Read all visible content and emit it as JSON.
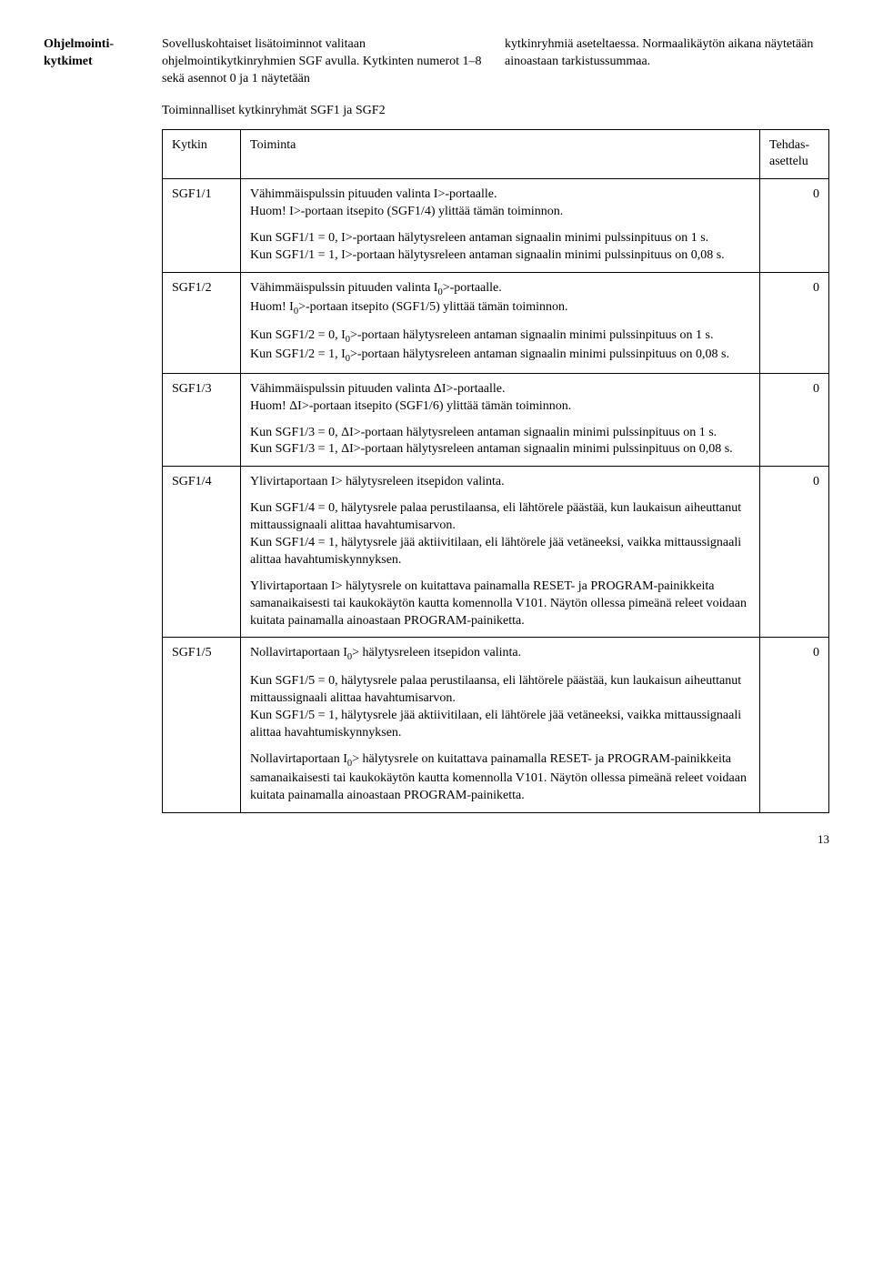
{
  "sideLabel": "Ohjelmointi-kytkimet",
  "intro": {
    "col1": "Sovelluskohtaiset lisätoiminnot valitaan ohjelmointikytkinryhmien SGF avulla. Kytkinten numerot 1–8 sekä asennot 0 ja 1 näytetään",
    "col2": "kytkinryhmiä aseteltaessa. Normaalikäytön aikana näytetään ainoastaan tarkistussummaa."
  },
  "subheading": "Toiminnalliset kytkinryhmät SGF1 ja SGF2",
  "header": {
    "c1": "Kytkin",
    "c2": "Toiminta",
    "c3": "Tehdas-asettelu"
  },
  "rows": [
    {
      "id": "SGF1/1",
      "value": "0",
      "paras": [
        "Vähimmäispulssin pituuden valinta I>-portaalle.\nHuom! I>-portaan itsepito (SGF1/4) ylittää tämän toiminnon.",
        "Kun SGF1/1 = 0, I>-portaan hälytysreleen antaman signaalin minimi pulssinpituus on 1 s.\nKun SGF1/1 = 1, I>-portaan hälytysreleen antaman signaalin minimi pulssinpituus on 0,08 s."
      ]
    },
    {
      "id": "SGF1/2",
      "value": "0",
      "paras": [
        "Vähimmäispulssin pituuden valinta I₀>-portaalle.\nHuom! I₀>-portaan itsepito (SGF1/5) ylittää tämän toiminnon.",
        "Kun SGF1/2 = 0, I₀>-portaan hälytysreleen antaman signaalin minimi pulssinpituus on 1 s.\nKun SGF1/2 = 1, I₀>-portaan hälytysreleen antaman signaalin minimi pulssinpituus on 0,08 s."
      ]
    },
    {
      "id": "SGF1/3",
      "value": "0",
      "paras": [
        "Vähimmäispulssin pituuden valinta ΔI>-portaalle.\nHuom! ΔI>-portaan itsepito (SGF1/6) ylittää tämän toiminnon.",
        "Kun SGF1/3 = 0, ΔI>-portaan hälytysreleen antaman signaalin minimi pulssinpituus on 1 s.\nKun SGF1/3 = 1, ΔI>-portaan hälytysreleen antaman signaalin minimi pulssinpituus on 0,08 s."
      ]
    },
    {
      "id": "SGF1/4",
      "value": "0",
      "paras": [
        "Ylivirtaportaan I> hälytysreleen itsepidon valinta.",
        "Kun SGF1/4 = 0, hälytysrele palaa perustilaansa, eli lähtörele päästää, kun laukaisun aiheuttanut mittaussignaali alittaa havahtumisarvon.\nKun SGF1/4 = 1, hälytysrele jää aktiivitilaan, eli lähtörele jää vetäneeksi, vaikka mittaussignaali alittaa havahtumiskynnyksen.",
        "Ylivirtaportaan I> hälytysrele on kuitattava painamalla RESET- ja PROGRAM-painikkeita samanaikaisesti tai kaukokäytön kautta komennolla V101. Näytön ollessa pimeänä releet voidaan kuitata painamalla ainoastaan PROGRAM-painiketta."
      ]
    },
    {
      "id": "SGF1/5",
      "value": "0",
      "paras": [
        "Nollavirtaportaan I₀> hälytysreleen itsepidon valinta.",
        "Kun SGF1/5 = 0, hälytysrele palaa perustilaansa, eli lähtörele päästää, kun laukaisun aiheuttanut mittaussignaali alittaa havahtumisarvon.\nKun SGF1/5 = 1, hälytysrele jää aktiivitilaan, eli lähtörele jää vetäneeksi, vaikka mittaussignaali alittaa havahtumiskynnyksen.",
        "Nollavirtaportaan I₀> hälytysrele on kuitattava painamalla RESET- ja PROGRAM-painikkeita samanaikaisesti tai kaukokäytön kautta komennolla V101. Näytön ollessa pimeänä releet voidaan kuitata painamalla ainoastaan PROGRAM-painiketta."
      ]
    }
  ],
  "pageNumber": "13"
}
